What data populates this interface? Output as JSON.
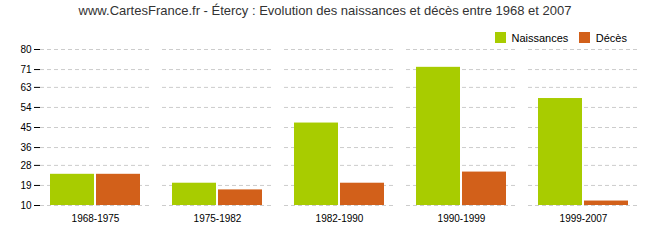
{
  "chart_data": {
    "type": "bar",
    "title": "www.CartesFrance.fr - Étercy : Evolution des naissances et décès entre 1968 et 2007",
    "categories": [
      "1968-1975",
      "1975-1982",
      "1982-1990",
      "1990-1999",
      "1999-2007"
    ],
    "series": [
      {
        "name": "Naissances",
        "color": "#a8cc00",
        "values": [
          24,
          20,
          47,
          72,
          58
        ]
      },
      {
        "name": "Décès",
        "color": "#d2601a",
        "values": [
          24,
          17,
          20,
          25,
          12
        ]
      }
    ],
    "ylim": [
      10,
      80
    ],
    "yticks": [
      10,
      19,
      28,
      36,
      45,
      54,
      63,
      71,
      80
    ],
    "grid": true,
    "legend": "upper right"
  }
}
